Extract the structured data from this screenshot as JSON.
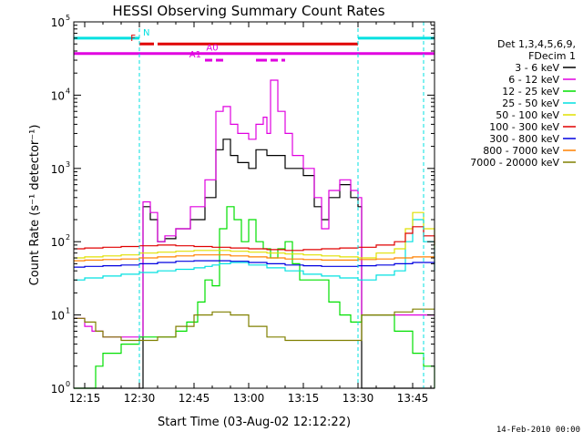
{
  "chart_data": {
    "type": "line",
    "title": "HESSI Observing Summary Count Rates",
    "xlabel": "Start Time (03-Aug-02 12:12:22)",
    "ylabel": "Count Rate (s⁻¹ detector⁻¹)",
    "xlim": [
      "12:12",
      "13:51"
    ],
    "ylim": [
      1,
      100000
    ],
    "yscale": "log",
    "x_ticks": [
      "12:15",
      "12:30",
      "12:45",
      "13:00",
      "13:15",
      "13:30",
      "13:45"
    ],
    "y_ticks": [
      "10^0",
      "10^1",
      "10^2",
      "10^3",
      "10^4",
      "10^5"
    ],
    "timestamp": "14-Feb-2010 00:00",
    "legend": {
      "placement": "right",
      "header": [
        "Det 1,3,4,5,6,9,",
        "FDecim 1"
      ],
      "entries": [
        {
          "label": "3 - 6 keV",
          "color": "#000000"
        },
        {
          "label": "6 - 12 keV",
          "color": "#e000e0"
        },
        {
          "label": "12 - 25 keV",
          "color": "#00e000"
        },
        {
          "label": "25 - 50 keV",
          "color": "#00e0e0"
        },
        {
          "label": "50 - 100 keV",
          "color": "#e0e000"
        },
        {
          "label": "100 - 300 keV",
          "color": "#e00000"
        },
        {
          "label": "300 - 800 keV",
          "color": "#0000e0"
        },
        {
          "label": "800 - 7000 keV",
          "color": "#ff8000"
        },
        {
          "label": "7000 - 20000 keV",
          "color": "#808000"
        }
      ]
    },
    "flag_bars": [
      {
        "label": "N",
        "color": "#00e0e0",
        "level": 60000,
        "segments": [
          [
            "12:12",
            "12:30"
          ],
          [
            "13:30",
            "13:51"
          ]
        ]
      },
      {
        "label": "F",
        "color": "#e00000",
        "level": 50000,
        "segments": [
          [
            "12:30",
            "12:34"
          ],
          [
            "12:35",
            "13:30"
          ]
        ]
      },
      {
        "label": "",
        "color": "#e000e0",
        "level": 37000,
        "segments": [
          [
            "12:12",
            "13:51"
          ]
        ]
      },
      {
        "label": "A0",
        "color": "#e000e0",
        "level": 37000,
        "segments": []
      },
      {
        "label": "A1",
        "color": "#e000e0",
        "level": 30000,
        "segments": [
          [
            "12:48",
            "12:50"
          ],
          [
            "12:51",
            "12:53"
          ],
          [
            "13:02",
            "13:05"
          ],
          [
            "13:06",
            "13:08"
          ],
          [
            "13:09",
            "13:10"
          ]
        ]
      }
    ],
    "vertical_markers": [
      "12:30",
      "13:30",
      "13:48"
    ],
    "series": [
      {
        "name": "3 - 6 keV",
        "color": "#000000",
        "x": [
          "12:12",
          "12:30",
          "12:31",
          "12:33",
          "12:35",
          "12:37",
          "12:40",
          "12:44",
          "12:48",
          "12:51",
          "12:53",
          "12:55",
          "12:57",
          "13:00",
          "13:02",
          "13:05",
          "13:08",
          "13:10",
          "13:12",
          "13:15",
          "13:18",
          "13:20",
          "13:22",
          "13:25",
          "13:28",
          "13:30",
          "13:31",
          "13:35",
          "13:40",
          "13:45",
          "13:48",
          "13:51"
        ],
        "y": [
          1,
          1,
          300,
          200,
          100,
          110,
          150,
          200,
          400,
          1800,
          2500,
          1500,
          1200,
          1000,
          1800,
          1500,
          1500,
          1000,
          1000,
          800,
          300,
          200,
          400,
          600,
          400,
          300,
          1,
          1,
          1,
          1,
          1,
          1
        ]
      },
      {
        "name": "6 - 12 keV",
        "color": "#e000e0",
        "x": [
          "12:12",
          "12:15",
          "12:17",
          "12:20",
          "12:25",
          "12:29",
          "12:30",
          "12:31",
          "12:33",
          "12:35",
          "12:37",
          "12:40",
          "12:44",
          "12:48",
          "12:51",
          "12:53",
          "12:55",
          "12:57",
          "13:00",
          "13:02",
          "13:04",
          "13:05",
          "13:06",
          "13:08",
          "13:10",
          "13:12",
          "13:15",
          "13:18",
          "13:20",
          "13:22",
          "13:25",
          "13:28",
          "13:30",
          "13:31",
          "13:35",
          "13:40",
          "13:45",
          "13:48",
          "13:51"
        ],
        "y": [
          9,
          7,
          6,
          5,
          5,
          5,
          5,
          350,
          250,
          100,
          120,
          150,
          300,
          700,
          6000,
          7000,
          4000,
          3000,
          2500,
          4000,
          5000,
          3000,
          16000,
          6000,
          3000,
          1500,
          1000,
          400,
          150,
          500,
          700,
          500,
          400,
          10,
          10,
          10,
          10,
          10,
          10
        ]
      },
      {
        "name": "12 - 25 keV",
        "color": "#00e000",
        "x": [
          "12:12",
          "12:14",
          "12:16",
          "12:18",
          "12:20",
          "12:25",
          "12:30",
          "12:35",
          "12:40",
          "12:43",
          "12:46",
          "12:48",
          "12:50",
          "12:52",
          "12:54",
          "12:56",
          "12:58",
          "13:00",
          "13:02",
          "13:04",
          "13:06",
          "13:08",
          "13:10",
          "13:12",
          "13:14",
          "13:16",
          "13:18",
          "13:20",
          "13:22",
          "13:25",
          "13:28",
          "13:30",
          "13:31",
          "13:35",
          "13:40",
          "13:45",
          "13:48",
          "13:51"
        ],
        "y": [
          1,
          1,
          1,
          2,
          3,
          4,
          5,
          5,
          6,
          8,
          15,
          30,
          25,
          150,
          300,
          200,
          100,
          200,
          100,
          80,
          60,
          80,
          100,
          50,
          30,
          30,
          30,
          30,
          15,
          10,
          8,
          8,
          10,
          10,
          6,
          3,
          2,
          1
        ]
      },
      {
        "name": "25 - 50 keV",
        "color": "#00e0e0",
        "x": [
          "12:12",
          "12:15",
          "12:20",
          "12:25",
          "12:30",
          "12:35",
          "12:40",
          "12:45",
          "12:48",
          "12:50",
          "12:52",
          "12:55",
          "13:00",
          "13:05",
          "13:10",
          "13:15",
          "13:20",
          "13:25",
          "13:30",
          "13:31",
          "13:35",
          "13:40",
          "13:43",
          "13:45",
          "13:48",
          "13:51"
        ],
        "y": [
          30,
          32,
          34,
          36,
          38,
          40,
          42,
          44,
          46,
          48,
          50,
          52,
          48,
          44,
          40,
          36,
          34,
          32,
          30,
          30,
          35,
          40,
          100,
          200,
          100,
          40
        ]
      },
      {
        "name": "50 - 100 keV",
        "color": "#e0e000",
        "x": [
          "12:12",
          "12:15",
          "12:20",
          "12:25",
          "12:30",
          "12:35",
          "12:40",
          "12:45",
          "12:50",
          "12:55",
          "13:00",
          "13:05",
          "13:10",
          "13:15",
          "13:20",
          "13:25",
          "13:30",
          "13:31",
          "13:35",
          "13:40",
          "13:43",
          "13:45",
          "13:48",
          "13:51"
        ],
        "y": [
          60,
          62,
          64,
          66,
          70,
          72,
          74,
          76,
          76,
          74,
          72,
          70,
          68,
          66,
          64,
          62,
          60,
          60,
          70,
          80,
          150,
          250,
          150,
          80
        ]
      },
      {
        "name": "100 - 300 keV",
        "color": "#e00000",
        "x": [
          "12:12",
          "12:15",
          "12:20",
          "12:25",
          "12:30",
          "12:35",
          "12:40",
          "12:45",
          "12:50",
          "12:55",
          "13:00",
          "13:05",
          "13:10",
          "13:15",
          "13:20",
          "13:25",
          "13:30",
          "13:31",
          "13:35",
          "13:40",
          "13:43",
          "13:45",
          "13:48",
          "13:51"
        ],
        "y": [
          80,
          82,
          84,
          86,
          88,
          90,
          88,
          86,
          84,
          82,
          80,
          78,
          76,
          78,
          80,
          82,
          84,
          84,
          90,
          100,
          130,
          160,
          120,
          90
        ]
      },
      {
        "name": "300 - 800 keV",
        "color": "#0000e0",
        "x": [
          "12:12",
          "12:15",
          "12:20",
          "12:25",
          "12:30",
          "12:35",
          "12:40",
          "12:45",
          "12:50",
          "12:55",
          "13:00",
          "13:05",
          "13:10",
          "13:15",
          "13:20",
          "13:25",
          "13:30",
          "13:35",
          "13:40",
          "13:45",
          "13:48",
          "13:51"
        ],
        "y": [
          45,
          46,
          47,
          48,
          50,
          52,
          54,
          55,
          55,
          54,
          52,
          50,
          48,
          47,
          46,
          46,
          47,
          48,
          50,
          52,
          52,
          50
        ]
      },
      {
        "name": "800 - 7000 keV",
        "color": "#ff8000",
        "x": [
          "12:12",
          "12:15",
          "12:20",
          "12:25",
          "12:30",
          "12:35",
          "12:40",
          "12:45",
          "12:50",
          "12:55",
          "13:00",
          "13:05",
          "13:10",
          "13:15",
          "13:20",
          "13:25",
          "13:30",
          "13:35",
          "13:40",
          "13:45",
          "13:48",
          "13:51"
        ],
        "y": [
          55,
          56,
          57,
          58,
          60,
          62,
          64,
          66,
          66,
          64,
          62,
          60,
          58,
          57,
          56,
          56,
          57,
          58,
          60,
          62,
          62,
          60
        ]
      },
      {
        "name": "7000 - 20000 keV",
        "color": "#808000",
        "x": [
          "12:12",
          "12:15",
          "12:18",
          "12:20",
          "12:25",
          "12:30",
          "12:35",
          "12:40",
          "12:45",
          "12:50",
          "12:55",
          "13:00",
          "13:05",
          "13:10",
          "13:15",
          "13:20",
          "13:25",
          "13:28",
          "13:30",
          "13:31",
          "13:35",
          "13:40",
          "13:45",
          "13:48",
          "13:51"
        ],
        "y": [
          9,
          8,
          6,
          5,
          4.5,
          4.5,
          5,
          7,
          10,
          11,
          10,
          7,
          5,
          4.5,
          4.5,
          4.5,
          4.5,
          4.5,
          4.5,
          10,
          10,
          11,
          12,
          12,
          12
        ]
      }
    ]
  }
}
